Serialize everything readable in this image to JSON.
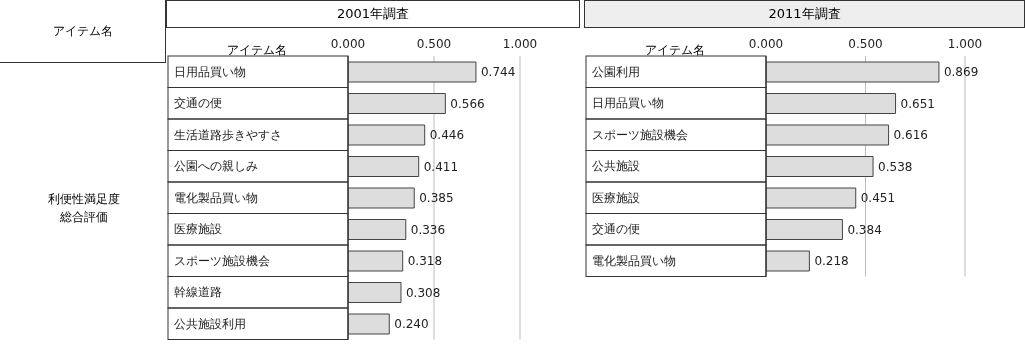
{
  "chart_data": [
    {
      "type": "bar",
      "orientation": "horizontal",
      "title": "2001年調査",
      "ylabel": "アイテム名",
      "annotations": [
        "アイテム名",
        "利便性満足度総合評価"
      ],
      "categories": [
        "日用品買い物",
        "交通の便",
        "生活道路歩きやすさ",
        "公園への親しみ",
        "電化製品買い物",
        "医療施設",
        "スポーツ施設機会",
        "幹線道路",
        "公共施設利用"
      ],
      "values": [
        0.744,
        0.566,
        0.446,
        0.411,
        0.385,
        0.336,
        0.318,
        0.308,
        0.24
      ],
      "value_labels": [
        "0.744",
        "0.566",
        "0.446",
        "0.411",
        "0.385",
        "0.336",
        "0.318",
        "0.308",
        "0.240"
      ],
      "color": "#dddddd",
      "xlim": [
        0,
        1
      ],
      "xticks": [
        {
          "value": 0,
          "label": "0.000"
        },
        {
          "value": 0.5,
          "label": "0.500"
        },
        {
          "value": 1,
          "label": "1.000"
        }
      ],
      "grid": "x"
    },
    {
      "type": "bar",
      "orientation": "horizontal",
      "title": "2011年調査",
      "ylabel": "アイテム名",
      "categories": [
        "公園利用",
        "日用品買い物",
        "スポーツ施設機会",
        "公共施設",
        "医療施設",
        "交通の便",
        "電化製品買い物"
      ],
      "values": [
        0.869,
        0.651,
        0.616,
        0.538,
        0.451,
        0.384,
        0.218
      ],
      "value_labels": [
        "0.869",
        "0.651",
        "0.616",
        "0.538",
        "0.451",
        "0.384",
        "0.218"
      ],
      "color": "#dddddd",
      "xlim": [
        0,
        1
      ],
      "xticks": [
        {
          "value": 0,
          "label": "0.000"
        },
        {
          "value": 0.5,
          "label": "0.500"
        },
        {
          "value": 1,
          "label": "1.000"
        }
      ],
      "grid": "x"
    }
  ]
}
